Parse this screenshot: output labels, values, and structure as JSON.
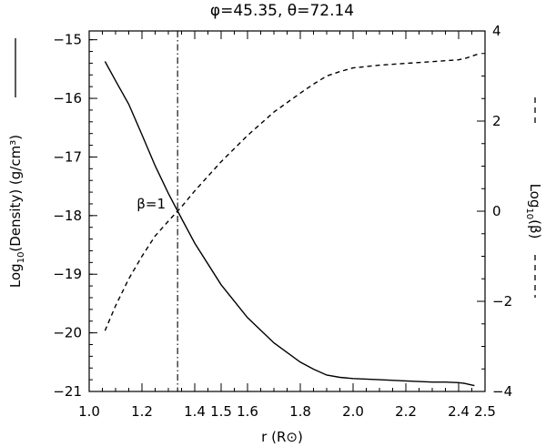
{
  "chart_data": {
    "type": "line",
    "title": "φ=45.35, θ=72.14",
    "xlabel": "r (R⊙)",
    "ylabel_left": "Log10(Density) (g/cm³)",
    "ylabel_right": "Log10(β)",
    "xlim": [
      1.0,
      2.5
    ],
    "ylim_left": [
      -21,
      -14.85
    ],
    "ylim_right": [
      -4,
      4
    ],
    "x_ticks": [
      1.0,
      1.2,
      1.4,
      1.5,
      1.6,
      1.8,
      2.0,
      2.2,
      2.4,
      2.5
    ],
    "x_tick_labels": [
      "1.0",
      "1.2",
      "1.4",
      "1.5",
      "1.6",
      "1.8",
      "2.0",
      "2.2",
      "2.4",
      "2.5"
    ],
    "y_left_ticks": [
      -21,
      -20,
      -19,
      -18,
      -17,
      -16,
      -15
    ],
    "y_left_tick_labels": [
      "−21",
      "−20",
      "−19",
      "−18",
      "−17",
      "−16",
      "−15"
    ],
    "y_right_ticks": [
      -4,
      -2,
      0,
      2,
      4
    ],
    "y_right_tick_labels": [
      "−4",
      "−2",
      "0",
      "2",
      "4"
    ],
    "series": [
      {
        "axis": "left",
        "style": "solid",
        "x": [
          1.06,
          1.1,
          1.15,
          1.2,
          1.25,
          1.3,
          1.35,
          1.4,
          1.5,
          1.6,
          1.7,
          1.8,
          1.85,
          1.9,
          1.95,
          2.0,
          2.1,
          2.2,
          2.3,
          2.35,
          2.4,
          2.42,
          2.44,
          2.46
        ],
        "y": [
          -15.37,
          -15.7,
          -16.1,
          -16.62,
          -17.15,
          -17.62,
          -18.05,
          -18.47,
          -19.18,
          -19.74,
          -20.17,
          -20.5,
          -20.62,
          -20.72,
          -20.76,
          -20.78,
          -20.8,
          -20.82,
          -20.84,
          -20.84,
          -20.85,
          -20.86,
          -20.88,
          -20.9
        ]
      },
      {
        "axis": "right",
        "style": "dashed",
        "x": [
          1.06,
          1.1,
          1.15,
          1.2,
          1.25,
          1.3,
          1.35,
          1.4,
          1.5,
          1.6,
          1.7,
          1.8,
          1.85,
          1.9,
          1.95,
          2.0,
          2.1,
          2.2,
          2.3,
          2.35,
          2.4,
          2.43,
          2.46,
          2.48
        ],
        "y": [
          -2.65,
          -2.1,
          -1.5,
          -1.0,
          -0.55,
          -0.22,
          0.1,
          0.45,
          1.1,
          1.68,
          2.2,
          2.62,
          2.82,
          3.0,
          3.1,
          3.18,
          3.24,
          3.28,
          3.32,
          3.34,
          3.36,
          3.4,
          3.46,
          3.5
        ]
      }
    ],
    "annotations": [
      {
        "type": "vline",
        "style": "dash-dot",
        "x": 1.335
      },
      {
        "type": "text",
        "text": "β=1",
        "x": 1.235,
        "y": -17.88,
        "axis": "left"
      }
    ]
  }
}
